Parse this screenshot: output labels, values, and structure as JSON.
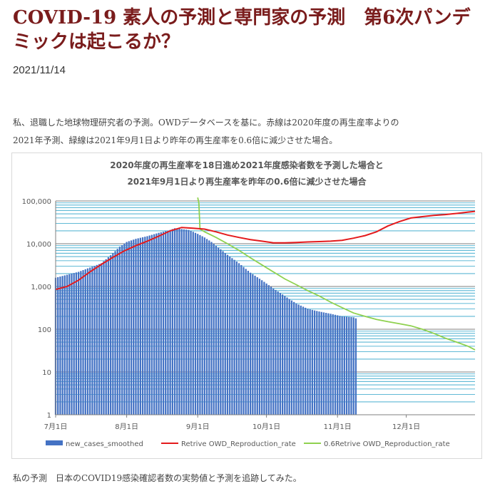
{
  "header": {
    "title": "COVID-19 素人の予測と専門家の予測　第6次パンデミックは起こるか？",
    "date": "2021/11/14"
  },
  "intro": {
    "line1": "私、退職した地球物理研究者の予測。OWDデータベースを基に。赤線は2020年度の再生産率よりの",
    "line2": "2021年予測、緑線は2021年9月1日より昨年の再生産率を0.6倍に減少させた場合。"
  },
  "footer": {
    "text": "私の予測　日本のCOVID19感染確認者数の実勢値と予測を追跡してみた。"
  },
  "colors": {
    "title": "#7a1c1c",
    "bars": "#4472c4",
    "red_line": "#e41a1c",
    "green_line": "#8fd14f",
    "grid": "#2ea3c9"
  },
  "chart_data": {
    "type": "bar",
    "title_line1": "2020年度の再生産率を18日進め2021年度感染者数を予測した場合と",
    "title_line2": "2021年9月1日より再生産率を昨年の0.6倍に減少させた場合",
    "y_scale": "log",
    "ylim": [
      1,
      100000
    ],
    "y_ticks": [
      "1",
      "10",
      "100",
      "1,000",
      "10,000",
      "100,000"
    ],
    "x_domain_days": [
      0,
      183
    ],
    "x_ticks": [
      {
        "label": "7月1日",
        "day": 0
      },
      {
        "label": "8月1日",
        "day": 31
      },
      {
        "label": "9月1日",
        "day": 62
      },
      {
        "label": "10月1日",
        "day": 92
      },
      {
        "label": "11月1日",
        "day": 123
      },
      {
        "label": "12月1日",
        "day": 153
      }
    ],
    "legend": [
      {
        "key": "bars",
        "label": "new_cases_smoothed"
      },
      {
        "key": "red",
        "label": "Retrive OWD_Reproduction_rate"
      },
      {
        "key": "green",
        "label": "0.6Retrive OWD_Reproduction_rate"
      }
    ],
    "series": {
      "new_cases_smoothed": {
        "days": [
          0,
          10,
          20,
          25,
          28,
          31,
          35,
          40,
          45,
          50,
          52,
          55,
          58,
          60,
          62,
          65,
          68,
          70,
          75,
          80,
          85,
          90,
          95,
          100,
          105,
          110,
          115,
          120,
          125,
          130,
          131
        ],
        "values": [
          1600,
          2200,
          3500,
          6000,
          8500,
          11000,
          13000,
          15000,
          18000,
          21000,
          23000,
          22000,
          21000,
          19000,
          17000,
          14000,
          11000,
          9000,
          5500,
          3500,
          2100,
          1400,
          900,
          600,
          400,
          300,
          260,
          230,
          200,
          190,
          180
        ]
      },
      "retrive_owd_reproduction_rate": {
        "days": [
          0,
          5,
          10,
          15,
          20,
          25,
          30,
          35,
          40,
          45,
          50,
          55,
          60,
          65,
          70,
          75,
          80,
          85,
          90,
          95,
          100,
          105,
          110,
          115,
          120,
          125,
          130,
          135,
          140,
          145,
          150,
          155,
          160,
          165,
          170,
          175,
          180,
          183
        ],
        "values": [
          850,
          1000,
          1400,
          2200,
          3300,
          4800,
          6800,
          9000,
          11500,
          15000,
          20000,
          24000,
          23000,
          22000,
          19000,
          16000,
          14000,
          12500,
          11500,
          10500,
          10500,
          10700,
          11000,
          11200,
          11500,
          12000,
          13500,
          15500,
          19000,
          26000,
          33000,
          40000,
          43000,
          46000,
          48000,
          51000,
          55000,
          57000
        ]
      },
      "retrive_0_6_owd_reproduction_rate": {
        "days": [
          62,
          62.5,
          63,
          65,
          70,
          75,
          80,
          85,
          90,
          95,
          100,
          105,
          110,
          115,
          120,
          125,
          130,
          135,
          140,
          145,
          150,
          155,
          160,
          165,
          170,
          175,
          180,
          183
        ],
        "values": [
          120000,
          90000,
          22000,
          19000,
          14000,
          10000,
          7000,
          4700,
          3200,
          2200,
          1500,
          1100,
          800,
          600,
          430,
          320,
          240,
          200,
          170,
          150,
          135,
          120,
          100,
          80,
          62,
          50,
          40,
          33
        ]
      }
    }
  }
}
